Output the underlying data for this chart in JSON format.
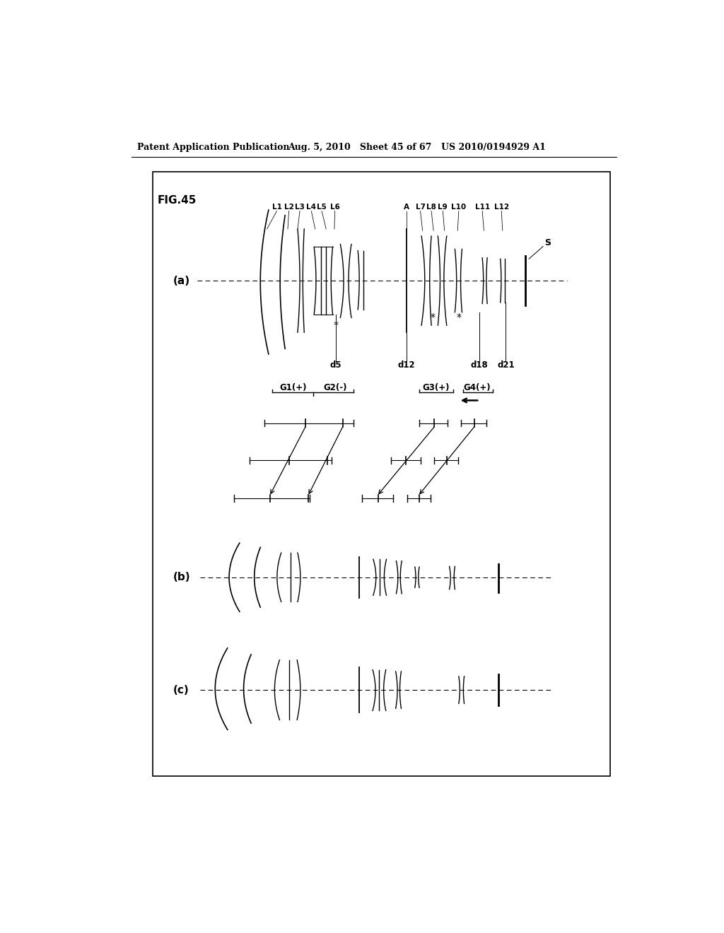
{
  "bg_color": "#ffffff",
  "header_left": "Patent Application Publication",
  "header_mid": "Aug. 5, 2010   Sheet 45 of 67",
  "header_right": "US 2010/0194929 A1",
  "fig_label": "FIG.45",
  "sub_a": "(a)",
  "sub_b": "(b)",
  "sub_c": "(c)",
  "sensor_label": "S",
  "d_labels": [
    "d5",
    "d12",
    "d18",
    "d21"
  ],
  "group_labels": [
    "G1(+)",
    "G2(-)",
    "G3(+)",
    "G4(+)"
  ],
  "lens_labels_left": [
    "L1",
    "L2",
    "L3",
    "L4",
    "L5",
    "L6"
  ],
  "lens_labels_right": [
    "A",
    "L7",
    "L8",
    "L9",
    "L10",
    "L11",
    "L12"
  ]
}
